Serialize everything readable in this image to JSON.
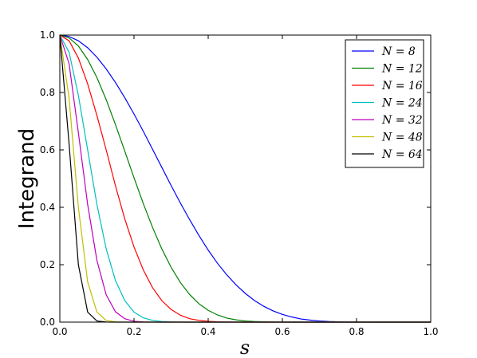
{
  "chart_data": {
    "type": "line",
    "xlabel": "s",
    "ylabel": "Integrand",
    "xlim": [
      0.0,
      1.0
    ],
    "ylim": [
      0.0,
      1.0
    ],
    "xticks": [
      "0.0",
      "0.2",
      "0.4",
      "0.6",
      "0.8",
      "1.0"
    ],
    "yticks": [
      "0.0",
      "0.2",
      "0.4",
      "0.6",
      "0.8",
      "1.0"
    ],
    "grid": false,
    "legend": "top-right",
    "x": [
      0.0,
      0.025,
      0.05,
      0.075,
      0.1,
      0.125,
      0.15,
      0.175,
      0.2,
      0.225,
      0.25,
      0.275,
      0.3,
      0.325,
      0.35,
      0.375,
      0.4,
      0.425,
      0.45,
      0.475,
      0.5,
      0.525,
      0.55,
      0.575,
      0.6,
      0.625,
      0.65,
      0.675,
      0.7,
      0.725,
      0.75,
      0.775,
      0.8,
      0.825,
      0.85,
      0.875,
      0.9,
      0.925,
      0.95,
      0.975,
      1.0
    ],
    "series": [
      {
        "name": "N = 8",
        "color": "#0000ff",
        "values": [
          1.0,
          0.995,
          0.98,
          0.956,
          0.923,
          0.882,
          0.835,
          0.782,
          0.725,
          0.665,
          0.602,
          0.539,
          0.476,
          0.415,
          0.357,
          0.302,
          0.251,
          0.205,
          0.165,
          0.13,
          0.1,
          0.075,
          0.055,
          0.039,
          0.027,
          0.018,
          0.011,
          0.007,
          0.004,
          0.002,
          0.001,
          0.0005,
          0.0002,
          0.0001,
          0.0,
          0.0,
          0.0,
          0.0,
          0.0,
          0.0,
          0.0
        ]
      },
      {
        "name": "N = 12",
        "color": "#008000",
        "values": [
          1.0,
          0.99,
          0.962,
          0.915,
          0.852,
          0.775,
          0.688,
          0.596,
          0.503,
          0.413,
          0.33,
          0.255,
          0.191,
          0.138,
          0.096,
          0.064,
          0.041,
          0.025,
          0.014,
          0.008,
          0.004,
          0.002,
          0.001,
          0.0003,
          0.0001,
          0.0,
          0.0,
          0.0,
          0.0,
          0.0,
          0.0,
          0.0,
          0.0,
          0.0,
          0.0,
          0.0,
          0.0,
          0.0,
          0.0,
          0.0,
          0.0
        ]
      },
      {
        "name": "N = 16",
        "color": "#ff0000",
        "values": [
          1.0,
          0.98,
          0.92,
          0.83,
          0.72,
          0.6,
          0.475,
          0.36,
          0.262,
          0.182,
          0.12,
          0.075,
          0.044,
          0.024,
          0.012,
          0.006,
          0.003,
          0.001,
          0.0004,
          0.0001,
          0.0,
          0.0,
          0.0,
          0.0,
          0.0,
          0.0,
          0.0,
          0.0,
          0.0,
          0.0,
          0.0,
          0.0,
          0.0,
          0.0,
          0.0,
          0.0,
          0.0,
          0.0,
          0.0,
          0.0,
          0.0
        ]
      },
      {
        "name": "N = 24",
        "color": "#00bfbf",
        "values": [
          1.0,
          0.94,
          0.79,
          0.6,
          0.41,
          0.255,
          0.145,
          0.075,
          0.035,
          0.015,
          0.006,
          0.002,
          0.0006,
          0.0001,
          0.0,
          0.0,
          0.0,
          0.0,
          0.0,
          0.0,
          0.0,
          0.0,
          0.0,
          0.0,
          0.0,
          0.0,
          0.0,
          0.0,
          0.0,
          0.0,
          0.0,
          0.0,
          0.0,
          0.0,
          0.0,
          0.0,
          0.0,
          0.0,
          0.0,
          0.0,
          0.0
        ]
      },
      {
        "name": "N = 32",
        "color": "#bf00bf",
        "values": [
          1.0,
          0.9,
          0.66,
          0.41,
          0.215,
          0.095,
          0.036,
          0.012,
          0.003,
          0.0008,
          0.0001,
          0.0,
          0.0,
          0.0,
          0.0,
          0.0,
          0.0,
          0.0,
          0.0,
          0.0,
          0.0,
          0.0,
          0.0,
          0.0,
          0.0,
          0.0,
          0.0,
          0.0,
          0.0,
          0.0,
          0.0,
          0.0,
          0.0,
          0.0,
          0.0,
          0.0,
          0.0,
          0.0,
          0.0,
          0.0,
          0.0
        ]
      },
      {
        "name": "N = 48",
        "color": "#bfbf00",
        "values": [
          1.0,
          0.78,
          0.4,
          0.14,
          0.035,
          0.006,
          0.0008,
          0.0001,
          0.0,
          0.0,
          0.0,
          0.0,
          0.0,
          0.0,
          0.0,
          0.0,
          0.0,
          0.0,
          0.0,
          0.0,
          0.0,
          0.0,
          0.0,
          0.0,
          0.0,
          0.0,
          0.0,
          0.0,
          0.0,
          0.0,
          0.0,
          0.0,
          0.0,
          0.0,
          0.0,
          0.0,
          0.0,
          0.0,
          0.0,
          0.0,
          0.0
        ]
      },
      {
        "name": "N = 64",
        "color": "#000000",
        "values": [
          1.0,
          0.62,
          0.2,
          0.035,
          0.004,
          0.0003,
          0.0,
          0.0,
          0.0,
          0.0,
          0.0,
          0.0,
          0.0,
          0.0,
          0.0,
          0.0,
          0.0,
          0.0,
          0.0,
          0.0,
          0.0,
          0.0,
          0.0,
          0.0,
          0.0,
          0.0,
          0.0,
          0.0,
          0.0,
          0.0,
          0.0,
          0.0,
          0.0,
          0.0,
          0.0,
          0.0,
          0.0,
          0.0,
          0.0,
          0.0,
          0.0
        ]
      }
    ]
  }
}
